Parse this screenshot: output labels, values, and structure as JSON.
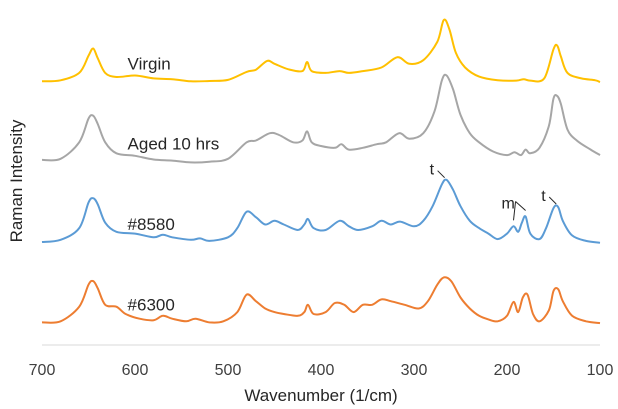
{
  "chart_data": {
    "type": "line",
    "xlabel": "Wavenumber (1/cm)",
    "ylabel": "Raman Intensity",
    "xlim": [
      700,
      100
    ],
    "x_reversed": true,
    "y_ticks_shown": false,
    "grid": false,
    "x_tick_labels": [
      "700",
      "600",
      "500",
      "400",
      "300",
      "200",
      "100"
    ],
    "y_offset_unit": 2.2,
    "series": [
      {
        "name": "Virgin",
        "color": "#FFC000",
        "offset": 3,
        "points": [
          [
            700,
            0.02
          ],
          [
            680,
            0.05
          ],
          [
            660,
            0.25
          ],
          [
            650,
            0.72
          ],
          [
            645,
            0.92
          ],
          [
            640,
            0.65
          ],
          [
            632,
            0.25
          ],
          [
            620,
            0.14
          ],
          [
            600,
            0.18
          ],
          [
            580,
            0.1
          ],
          [
            560,
            0.08
          ],
          [
            540,
            0.02
          ],
          [
            520,
            0.03
          ],
          [
            500,
            0.06
          ],
          [
            480,
            0.28
          ],
          [
            470,
            0.34
          ],
          [
            458,
            0.58
          ],
          [
            450,
            0.5
          ],
          [
            435,
            0.35
          ],
          [
            420,
            0.3
          ],
          [
            415,
            0.55
          ],
          [
            410,
            0.3
          ],
          [
            395,
            0.25
          ],
          [
            380,
            0.3
          ],
          [
            370,
            0.25
          ],
          [
            355,
            0.3
          ],
          [
            335,
            0.4
          ],
          [
            318,
            0.68
          ],
          [
            305,
            0.5
          ],
          [
            290,
            0.6
          ],
          [
            275,
            1.1
          ],
          [
            268,
            1.7
          ],
          [
            262,
            1.45
          ],
          [
            255,
            0.8
          ],
          [
            245,
            0.4
          ],
          [
            230,
            0.15
          ],
          [
            210,
            0.05
          ],
          [
            190,
            0.04
          ],
          [
            182,
            0.08
          ],
          [
            175,
            0.04
          ],
          [
            160,
            0.1
          ],
          [
            150,
            0.9
          ],
          [
            146,
            1.0
          ],
          [
            142,
            0.7
          ],
          [
            135,
            0.25
          ],
          [
            120,
            0.1
          ],
          [
            105,
            0.05
          ],
          [
            100,
            0.0
          ]
        ]
      },
      {
        "name": "Aged 10 hrs",
        "color": "#A6A6A6",
        "offset": 2,
        "points": [
          [
            700,
            0.07
          ],
          [
            680,
            0.1
          ],
          [
            660,
            0.55
          ],
          [
            650,
            1.2
          ],
          [
            645,
            1.28
          ],
          [
            640,
            1.05
          ],
          [
            632,
            0.55
          ],
          [
            620,
            0.25
          ],
          [
            600,
            0.18
          ],
          [
            580,
            0.08
          ],
          [
            560,
            0.05
          ],
          [
            540,
            0.0
          ],
          [
            520,
            0.02
          ],
          [
            500,
            0.1
          ],
          [
            480,
            0.55
          ],
          [
            470,
            0.6
          ],
          [
            455,
            0.8
          ],
          [
            445,
            0.75
          ],
          [
            430,
            0.55
          ],
          [
            420,
            0.6
          ],
          [
            415,
            0.85
          ],
          [
            410,
            0.55
          ],
          [
            400,
            0.45
          ],
          [
            385,
            0.4
          ],
          [
            378,
            0.5
          ],
          [
            370,
            0.35
          ],
          [
            355,
            0.4
          ],
          [
            340,
            0.5
          ],
          [
            330,
            0.55
          ],
          [
            316,
            0.8
          ],
          [
            305,
            0.65
          ],
          [
            290,
            0.8
          ],
          [
            278,
            1.4
          ],
          [
            270,
            2.25
          ],
          [
            265,
            2.38
          ],
          [
            258,
            2.0
          ],
          [
            250,
            1.3
          ],
          [
            240,
            0.8
          ],
          [
            230,
            0.55
          ],
          [
            215,
            0.3
          ],
          [
            200,
            0.2
          ],
          [
            192,
            0.28
          ],
          [
            185,
            0.2
          ],
          [
            180,
            0.35
          ],
          [
            175,
            0.25
          ],
          [
            165,
            0.4
          ],
          [
            155,
            1.0
          ],
          [
            150,
            1.75
          ],
          [
            146,
            1.82
          ],
          [
            142,
            1.6
          ],
          [
            135,
            0.9
          ],
          [
            125,
            0.6
          ],
          [
            110,
            0.35
          ],
          [
            100,
            0.2
          ]
        ]
      },
      {
        "name": "#8580",
        "color": "#5B9BD5",
        "offset": 1,
        "points": [
          [
            700,
            0.02
          ],
          [
            680,
            0.08
          ],
          [
            660,
            0.4
          ],
          [
            650,
            1.1
          ],
          [
            645,
            1.22
          ],
          [
            640,
            1.05
          ],
          [
            632,
            0.55
          ],
          [
            620,
            0.3
          ],
          [
            600,
            0.25
          ],
          [
            580,
            0.15
          ],
          [
            570,
            0.22
          ],
          [
            560,
            0.15
          ],
          [
            540,
            0.08
          ],
          [
            530,
            0.12
          ],
          [
            520,
            0.05
          ],
          [
            500,
            0.15
          ],
          [
            490,
            0.4
          ],
          [
            480,
            0.85
          ],
          [
            470,
            0.7
          ],
          [
            460,
            0.5
          ],
          [
            450,
            0.6
          ],
          [
            440,
            0.5
          ],
          [
            425,
            0.35
          ],
          [
            418,
            0.5
          ],
          [
            414,
            0.65
          ],
          [
            408,
            0.4
          ],
          [
            395,
            0.35
          ],
          [
            380,
            0.6
          ],
          [
            370,
            0.45
          ],
          [
            360,
            0.35
          ],
          [
            345,
            0.45
          ],
          [
            335,
            0.6
          ],
          [
            325,
            0.5
          ],
          [
            315,
            0.58
          ],
          [
            300,
            0.45
          ],
          [
            290,
            0.6
          ],
          [
            280,
            1.0
          ],
          [
            270,
            1.6
          ],
          [
            265,
            1.72
          ],
          [
            258,
            1.45
          ],
          [
            250,
            1.0
          ],
          [
            240,
            0.6
          ],
          [
            230,
            0.4
          ],
          [
            220,
            0.25
          ],
          [
            210,
            0.1
          ],
          [
            200,
            0.25
          ],
          [
            193,
            0.45
          ],
          [
            188,
            0.3
          ],
          [
            184,
            0.55
          ],
          [
            180,
            0.72
          ],
          [
            175,
            0.25
          ],
          [
            165,
            0.1
          ],
          [
            158,
            0.4
          ],
          [
            150,
            0.95
          ],
          [
            145,
            0.98
          ],
          [
            140,
            0.6
          ],
          [
            130,
            0.2
          ],
          [
            115,
            0.05
          ],
          [
            100,
            0.0
          ]
        ]
      },
      {
        "name": "#6300",
        "color": "#ED7D31",
        "offset": 0,
        "points": [
          [
            700,
            0.02
          ],
          [
            680,
            0.05
          ],
          [
            660,
            0.45
          ],
          [
            650,
            1.05
          ],
          [
            645,
            1.15
          ],
          [
            640,
            0.95
          ],
          [
            632,
            0.5
          ],
          [
            620,
            0.45
          ],
          [
            610,
            0.25
          ],
          [
            595,
            0.12
          ],
          [
            580,
            0.08
          ],
          [
            570,
            0.2
          ],
          [
            560,
            0.12
          ],
          [
            545,
            0.05
          ],
          [
            535,
            0.12
          ],
          [
            520,
            0.02
          ],
          [
            505,
            0.05
          ],
          [
            490,
            0.3
          ],
          [
            480,
            0.78
          ],
          [
            470,
            0.6
          ],
          [
            460,
            0.4
          ],
          [
            450,
            0.3
          ],
          [
            440,
            0.25
          ],
          [
            425,
            0.2
          ],
          [
            418,
            0.3
          ],
          [
            414,
            0.5
          ],
          [
            408,
            0.25
          ],
          [
            395,
            0.3
          ],
          [
            385,
            0.55
          ],
          [
            375,
            0.5
          ],
          [
            365,
            0.3
          ],
          [
            355,
            0.5
          ],
          [
            345,
            0.5
          ],
          [
            335,
            0.65
          ],
          [
            325,
            0.6
          ],
          [
            310,
            0.5
          ],
          [
            295,
            0.4
          ],
          [
            285,
            0.6
          ],
          [
            275,
            1.05
          ],
          [
            268,
            1.25
          ],
          [
            260,
            1.15
          ],
          [
            250,
            0.7
          ],
          [
            240,
            0.4
          ],
          [
            230,
            0.2
          ],
          [
            220,
            0.1
          ],
          [
            210,
            0.05
          ],
          [
            200,
            0.2
          ],
          [
            193,
            0.58
          ],
          [
            188,
            0.3
          ],
          [
            183,
            0.7
          ],
          [
            178,
            0.78
          ],
          [
            172,
            0.25
          ],
          [
            165,
            0.05
          ],
          [
            155,
            0.35
          ],
          [
            150,
            0.88
          ],
          [
            145,
            0.93
          ],
          [
            140,
            0.6
          ],
          [
            130,
            0.2
          ],
          [
            115,
            0.05
          ],
          [
            100,
            0.0
          ]
        ]
      }
    ],
    "annotations": [
      {
        "text": "t",
        "series": "#8580",
        "x": 266,
        "y": 1.7
      },
      {
        "text": "m",
        "series": "#8580",
        "targets": [
          [
            193,
            0.45
          ],
          [
            180,
            0.72
          ]
        ]
      },
      {
        "text": "t",
        "series": "#8580",
        "x": 146,
        "y": 0.98
      }
    ]
  }
}
